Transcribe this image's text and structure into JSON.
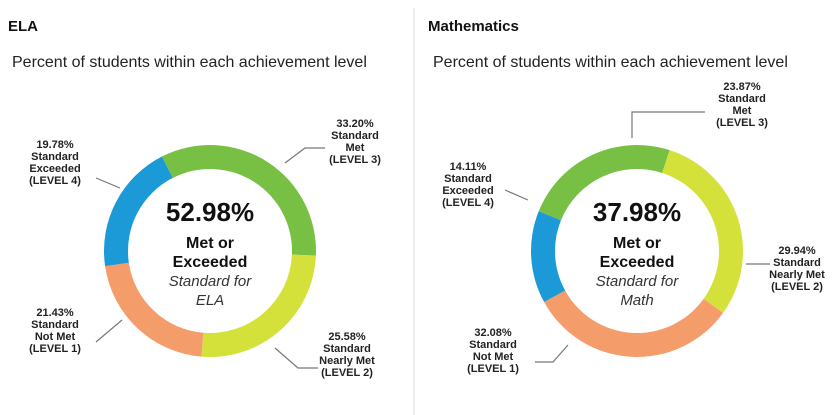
{
  "chart_data": [
    {
      "type": "donut",
      "title": "ELA",
      "subtitle": "Percent of students within each achievement level",
      "categories": [
        [
          "Standard",
          "Met",
          "(LEVEL 3)"
        ],
        [
          "Standard",
          "Nearly Met",
          "(LEVEL 2)"
        ],
        [
          "Standard",
          "Not Met",
          "(LEVEL 1)"
        ],
        [
          "Standard",
          "Exceeded",
          "(LEVEL 4)"
        ]
      ],
      "values": [
        33.2,
        25.58,
        21.43,
        19.78
      ],
      "value_labels": [
        "33.20%",
        "25.58%",
        "21.43%",
        "19.78%"
      ],
      "colors": [
        "#77c043",
        "#d5e13b",
        "#f59c6b",
        "#1c9ad7"
      ],
      "center_text": [
        "52.98%",
        "Met or",
        "Exceeded",
        "Standard for",
        "ELA"
      ]
    },
    {
      "type": "donut",
      "title": "Mathematics",
      "subtitle": "Percent of students within each achievement level",
      "categories": [
        [
          "Standard",
          "Met",
          "(LEVEL 3)"
        ],
        [
          "Standard",
          "Nearly Met",
          "(LEVEL 2)"
        ],
        [
          "Standard",
          "Not Met",
          "(LEVEL 1)"
        ],
        [
          "Standard",
          "Exceeded",
          "(LEVEL 4)"
        ]
      ],
      "values": [
        23.87,
        29.94,
        32.08,
        14.11
      ],
      "value_labels": [
        "23.87%",
        "29.94%",
        "32.08%",
        "14.11%"
      ],
      "colors": [
        "#77c043",
        "#d5e13b",
        "#f59c6b",
        "#1c9ad7"
      ],
      "center_text": [
        "37.98%",
        "Met or",
        "Exceeded",
        "Standard for",
        "Math"
      ]
    }
  ]
}
